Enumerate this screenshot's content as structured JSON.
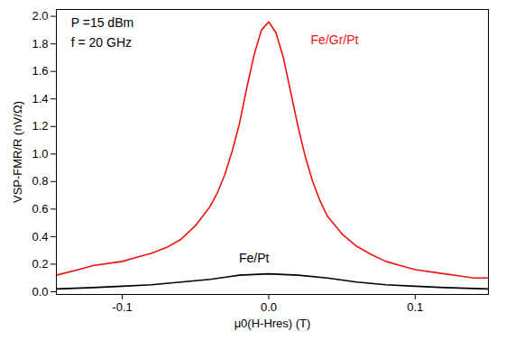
{
  "chart_data": {
    "type": "line",
    "x_label": "μ0(H-Hres) (T)",
    "y_label": "VSP-FMR/R (nV/Ω)",
    "xlim": [
      -0.145,
      0.15
    ],
    "ylim": [
      -0.02,
      2.05
    ],
    "xticks": [
      -0.1,
      {
        "value": 0,
        "label": "0.0"
      },
      0.1
    ],
    "yticks": [
      {
        "value": 0,
        "label": "0.0"
      },
      0.2,
      0.4,
      0.6,
      0.8,
      {
        "value": 1,
        "label": "1.0"
      },
      1.2,
      1.4,
      1.6,
      1.8,
      {
        "value": 2,
        "label": "2.0"
      }
    ],
    "grid": false,
    "annotations": [
      {
        "text": "P =15 dBm",
        "x": -0.135,
        "y": 1.95,
        "color": "#000000"
      },
      {
        "text": "f = 20 GHz",
        "x": -0.135,
        "y": 1.81,
        "color": "#000000"
      }
    ],
    "series": [
      {
        "name": "Fe/Gr/Pt",
        "color": "#ee1111",
        "label_x": 0.045,
        "label_y": 1.83,
        "x": [
          -0.145,
          -0.13,
          -0.12,
          -0.1,
          -0.09,
          -0.08,
          -0.07,
          -0.06,
          -0.05,
          -0.04,
          -0.035,
          -0.03,
          -0.025,
          -0.02,
          -0.015,
          -0.01,
          -0.005,
          0,
          0.005,
          0.01,
          0.015,
          0.02,
          0.025,
          0.03,
          0.035,
          0.04,
          0.05,
          0.06,
          0.07,
          0.08,
          0.09,
          0.1,
          0.12,
          0.14,
          0.15
        ],
        "values": [
          0.12,
          0.16,
          0.19,
          0.22,
          0.25,
          0.28,
          0.32,
          0.38,
          0.48,
          0.62,
          0.72,
          0.85,
          1.02,
          1.22,
          1.48,
          1.72,
          1.9,
          1.96,
          1.88,
          1.7,
          1.45,
          1.2,
          0.98,
          0.8,
          0.66,
          0.55,
          0.42,
          0.33,
          0.27,
          0.22,
          0.19,
          0.16,
          0.13,
          0.1,
          0.1
        ]
      },
      {
        "name": "Fe/Pt",
        "color": "#000000",
        "label_x": -0.01,
        "label_y": 0.24,
        "x": [
          -0.145,
          -0.12,
          -0.1,
          -0.08,
          -0.06,
          -0.04,
          -0.02,
          0,
          0.02,
          0.04,
          0.06,
          0.08,
          0.1,
          0.12,
          0.15
        ],
        "values": [
          0.02,
          0.03,
          0.04,
          0.05,
          0.07,
          0.09,
          0.12,
          0.13,
          0.12,
          0.1,
          0.07,
          0.05,
          0.04,
          0.03,
          0.02
        ]
      }
    ]
  }
}
